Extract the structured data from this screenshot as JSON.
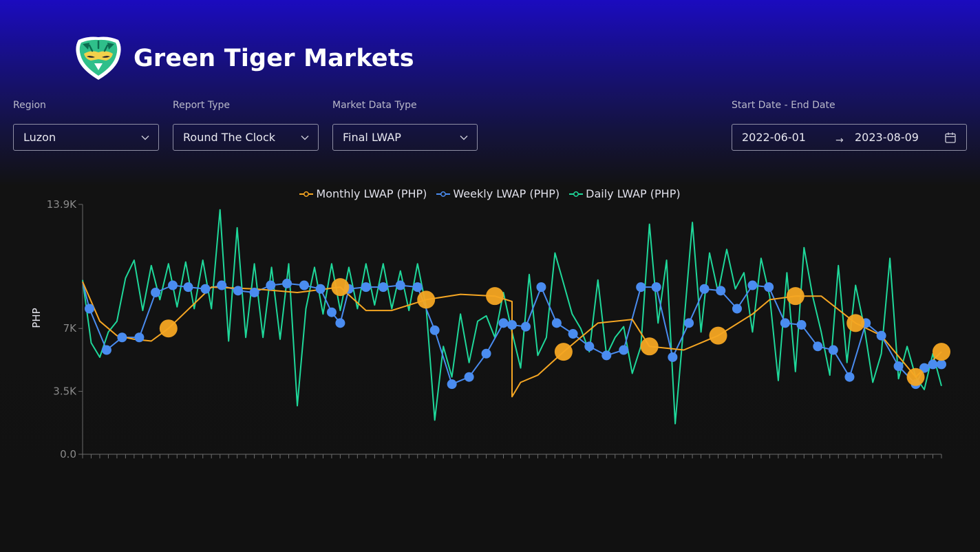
{
  "brand": {
    "name": "Green Tiger Markets",
    "logo_icon": "tiger-logo-icon"
  },
  "filters": {
    "region": {
      "label": "Region",
      "value": "Luzon"
    },
    "report_type": {
      "label": "Report Type",
      "value": "Round The Clock"
    },
    "market_data_type": {
      "label": "Market Data Type",
      "value": "Final LWAP"
    },
    "date_range": {
      "label": "Start Date - End Date",
      "start": "2022-06-01",
      "end": "2023-08-09",
      "separator": "→"
    }
  },
  "colors": {
    "monthly": "#f5a623",
    "weekly": "#4a8cf0",
    "daily": "#1fd89a"
  },
  "chart_data": {
    "type": "line",
    "ylabel": "PHP",
    "xlabel": "",
    "ylim": [
      0,
      13900
    ],
    "yticks": [
      {
        "value": 0,
        "label": "0.0"
      },
      {
        "value": 3500,
        "label": "3.5K"
      },
      {
        "value": 7000,
        "label": "7K"
      },
      {
        "value": 13900,
        "label": "13.9K"
      }
    ],
    "legend_position": "top-center",
    "x_range": [
      0,
      1
    ],
    "series": [
      {
        "name": "Monthly LWAP (PHP)",
        "x": [
          0.0,
          0.02,
          0.04,
          0.06,
          0.08,
          0.1,
          0.15,
          0.2,
          0.25,
          0.3,
          0.33,
          0.36,
          0.4,
          0.44,
          0.48,
          0.5,
          0.5,
          0.51,
          0.53,
          0.56,
          0.6,
          0.64,
          0.66,
          0.7,
          0.74,
          0.78,
          0.8,
          0.83,
          0.86,
          0.9,
          0.93,
          0.97,
          1.0
        ],
        "values": [
          9600,
          7400,
          6600,
          6400,
          6300,
          7000,
          9300,
          9200,
          9000,
          9300,
          8000,
          8000,
          8600,
          8900,
          8800,
          8500,
          3200,
          4000,
          4400,
          5700,
          7300,
          7500,
          6000,
          5800,
          6600,
          7800,
          8600,
          8800,
          8800,
          7300,
          6600,
          4300,
          5700
        ]
      },
      {
        "name": "Weekly LWAP (PHP)",
        "x": [
          0.0,
          0.008,
          0.028,
          0.046,
          0.066,
          0.085,
          0.105,
          0.123,
          0.143,
          0.162,
          0.181,
          0.2,
          0.219,
          0.238,
          0.258,
          0.277,
          0.29,
          0.3,
          0.31,
          0.33,
          0.35,
          0.37,
          0.39,
          0.41,
          0.43,
          0.45,
          0.47,
          0.49,
          0.5,
          0.516,
          0.534,
          0.552,
          0.571,
          0.59,
          0.61,
          0.63,
          0.65,
          0.668,
          0.687,
          0.706,
          0.724,
          0.743,
          0.762,
          0.78,
          0.799,
          0.818,
          0.837,
          0.856,
          0.874,
          0.893,
          0.912,
          0.93,
          0.95,
          0.97,
          0.98,
          0.99,
          1.0
        ],
        "values": [
          9600,
          8100,
          5800,
          6500,
          6500,
          9000,
          9400,
          9300,
          9200,
          9400,
          9100,
          9000,
          9400,
          9500,
          9400,
          9200,
          7900,
          7300,
          9200,
          9300,
          9300,
          9400,
          9300,
          6900,
          3900,
          4300,
          5600,
          7300,
          7200,
          7100,
          9300,
          7300,
          6700,
          6000,
          5500,
          5800,
          9300,
          9300,
          5400,
          7300,
          9200,
          9100,
          8100,
          9400,
          9300,
          7300,
          7200,
          6000,
          5800,
          4300,
          7300,
          6600,
          4900,
          3900,
          4800,
          5000,
          5000
        ]
      },
      {
        "name": "Daily LWAP (PHP)",
        "x": [
          0.0,
          0.01,
          0.02,
          0.03,
          0.04,
          0.05,
          0.06,
          0.07,
          0.08,
          0.09,
          0.1,
          0.11,
          0.12,
          0.13,
          0.14,
          0.15,
          0.16,
          0.17,
          0.18,
          0.19,
          0.2,
          0.21,
          0.22,
          0.23,
          0.24,
          0.25,
          0.26,
          0.27,
          0.28,
          0.29,
          0.3,
          0.31,
          0.32,
          0.33,
          0.34,
          0.35,
          0.36,
          0.37,
          0.38,
          0.39,
          0.4,
          0.41,
          0.42,
          0.43,
          0.44,
          0.45,
          0.46,
          0.47,
          0.48,
          0.49,
          0.5,
          0.51,
          0.52,
          0.53,
          0.54,
          0.55,
          0.56,
          0.57,
          0.58,
          0.59,
          0.6,
          0.61,
          0.62,
          0.63,
          0.64,
          0.65,
          0.66,
          0.67,
          0.68,
          0.69,
          0.7,
          0.71,
          0.72,
          0.73,
          0.74,
          0.75,
          0.76,
          0.77,
          0.78,
          0.79,
          0.8,
          0.81,
          0.82,
          0.83,
          0.84,
          0.85,
          0.86,
          0.87,
          0.88,
          0.89,
          0.9,
          0.91,
          0.92,
          0.93,
          0.94,
          0.95,
          0.96,
          0.97,
          0.98,
          0.99,
          1.0
        ],
        "values": [
          9700,
          6200,
          5400,
          6800,
          7400,
          9800,
          10800,
          8000,
          10500,
          8600,
          10600,
          8200,
          10700,
          8100,
          10800,
          8100,
          13600,
          6300,
          12600,
          6500,
          10600,
          6500,
          10400,
          6400,
          10600,
          2700,
          8100,
          10400,
          7800,
          10600,
          8000,
          10400,
          8100,
          10600,
          8300,
          10600,
          8100,
          10200,
          8000,
          10600,
          8200,
          1900,
          6000,
          4300,
          7800,
          5100,
          7400,
          7700,
          6500,
          9000,
          6800,
          4800,
          10000,
          5500,
          6500,
          11200,
          9500,
          7800,
          7000,
          5700,
          9700,
          5500,
          6500,
          7100,
          4500,
          6000,
          12800,
          7300,
          10800,
          1700,
          7200,
          12900,
          6800,
          11200,
          9000,
          11400,
          9200,
          10100,
          6800,
          10900,
          8800,
          4100,
          10100,
          4600,
          11500,
          8800,
          6800,
          4400,
          10500,
          5100,
          9400,
          7100,
          4000,
          5600,
          10900,
          4200,
          6000,
          4300,
          3600,
          5600,
          3800
        ]
      }
    ]
  }
}
